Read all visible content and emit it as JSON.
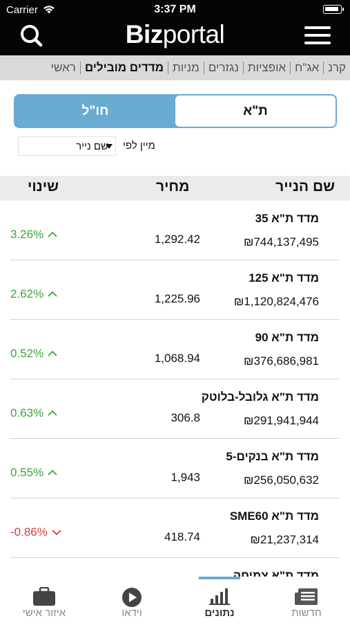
{
  "status": {
    "carrier": "Carrier",
    "time": "3:37 PM"
  },
  "header": {
    "logo_bold": "Biz",
    "logo_regular": "portal"
  },
  "categories": [
    {
      "label": "ראשי",
      "active": false
    },
    {
      "label": "מדדים מובילים",
      "active": true
    },
    {
      "label": "מניות",
      "active": false
    },
    {
      "label": "נגזרים",
      "active": false
    },
    {
      "label": "אופציות",
      "active": false
    },
    {
      "label": "אג\"ח",
      "active": false
    },
    {
      "label": "קרנ",
      "active": false
    }
  ],
  "segment": {
    "ta": "ת\"א",
    "foreign": "חו\"ל",
    "selected": "ta"
  },
  "sort": {
    "label": "מיין לפי",
    "value": "שם נייר"
  },
  "table": {
    "headers": {
      "name": "שם הנייר",
      "price": "מחיר",
      "change": "שינוי"
    },
    "rows": [
      {
        "name": "מדד ת\"א 35",
        "volume": "₪744,137,495",
        "price": "1,292.42",
        "change": "3.26%",
        "direction": "up"
      },
      {
        "name": "מדד ת\"א 125",
        "volume": "₪1,120,824,476",
        "price": "1,225.96",
        "change": "2.62%",
        "direction": "up"
      },
      {
        "name": "מדד ת\"א 90",
        "volume": "₪376,686,981",
        "price": "1,068.94",
        "change": "0.52%",
        "direction": "up"
      },
      {
        "name": "מדד ת\"א גלובל-בלוטק",
        "volume": "₪291,941,944",
        "price": "306.8",
        "change": "0.63%",
        "direction": "up"
      },
      {
        "name": "מדד ת\"א בנקים-5",
        "volume": "₪256,050,632",
        "price": "1,943",
        "change": "0.55%",
        "direction": "up"
      },
      {
        "name": "מדד ת\"א SME60",
        "volume": "₪21,237,314",
        "price": "418.74",
        "change": "-0.86%",
        "direction": "down"
      },
      {
        "name": "מדד ת\"א צמיחה",
        "volume": "",
        "price": "",
        "change": "",
        "direction": "none"
      }
    ]
  },
  "tabs": {
    "news": "חדשות",
    "data": "נתונים",
    "video": "וידאו",
    "personal": "איזור אישי",
    "active": "data"
  },
  "colors": {
    "accent": "#6aabd2",
    "up": "#3ba33b",
    "down": "#d24040"
  }
}
